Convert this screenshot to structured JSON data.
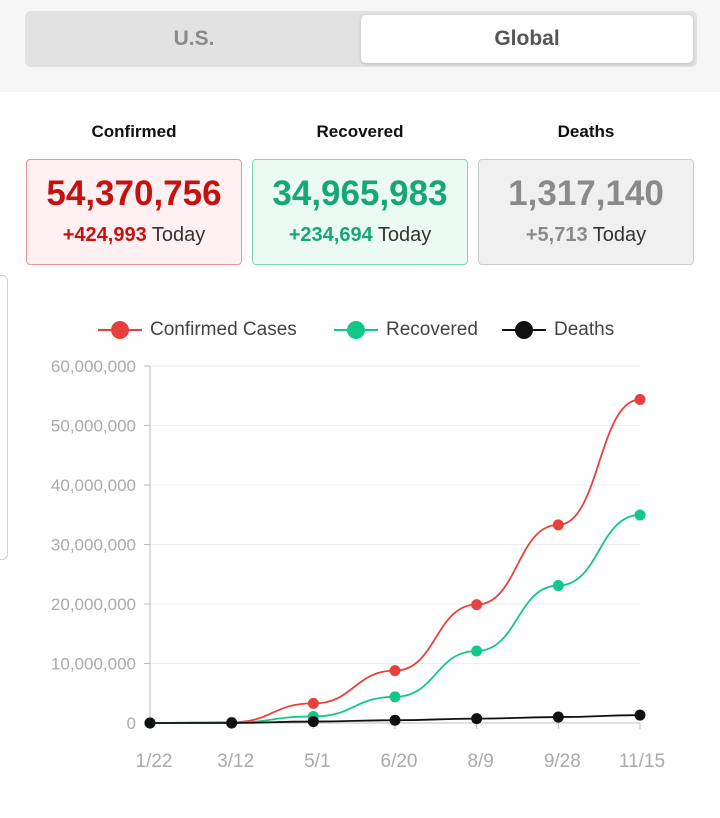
{
  "tabs": {
    "us_label": "U.S.",
    "global_label": "Global",
    "selected": "Global"
  },
  "stats": {
    "confirmed": {
      "label": "Confirmed",
      "total": "54,370,756",
      "delta": "+424,993",
      "today": "Today"
    },
    "recovered": {
      "label": "Recovered",
      "total": "34,965,983",
      "delta": "+234,694",
      "today": "Today"
    },
    "deaths": {
      "label": "Deaths",
      "total": "1,317,140",
      "delta": "+5,713",
      "today": "Today"
    }
  },
  "colors": {
    "confirmed": "#e8413c",
    "recovered": "#12c888",
    "deaths": "#111111"
  },
  "chart_data": {
    "type": "line",
    "x": [
      "1/22",
      "3/12",
      "5/1",
      "6/20",
      "8/9",
      "9/28",
      "11/15"
    ],
    "ylim": [
      0,
      60000000
    ],
    "yticks": [
      "0",
      "10,000,000",
      "20,000,000",
      "30,000,000",
      "40,000,000",
      "50,000,000",
      "60,000,000"
    ],
    "grid": true,
    "legend_position": "top",
    "series": [
      {
        "name": "Confirmed Cases",
        "color": "#e8413c",
        "values": [
          555,
          128000,
          3300000,
          8800000,
          19900000,
          33300000,
          54370756
        ]
      },
      {
        "name": "Recovered",
        "color": "#12c888",
        "values": [
          28,
          68000,
          1100000,
          4400000,
          12100000,
          23100000,
          34965983
        ]
      },
      {
        "name": "Deaths",
        "color": "#111111",
        "values": [
          17,
          4700,
          240000,
          466000,
          730000,
          1000000,
          1317140
        ]
      }
    ]
  }
}
